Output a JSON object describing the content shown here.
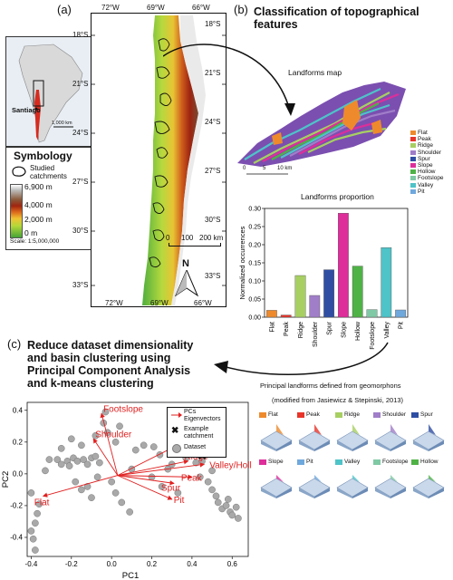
{
  "panel_a": {
    "label": "(a)",
    "top_lon_ticks": [
      "72°W",
      "69°W",
      "66°W"
    ],
    "bottom_lon_ticks": [
      "72°W",
      "69°W",
      "66°W"
    ],
    "lat_ticks": [
      "18°S",
      "21°S",
      "24°S",
      "27°S",
      "30°S",
      "33°S"
    ],
    "scalebar": {
      "labels": [
        "0",
        "100",
        "200 km"
      ]
    },
    "north": "N",
    "inset_city": "Santiago",
    "inset_scale": "1,000 km",
    "symbology": {
      "title": "Symbology",
      "catchments_label": "Studied catchments",
      "elevation_labels": [
        "6,900 m",
        "4,000 m",
        "2,000 m",
        "0 m"
      ],
      "scale_text": "Scale: 1:5,000,000"
    }
  },
  "panel_b": {
    "label": "(b)",
    "title_line1": "Classification of topographical",
    "title_line2": "features",
    "map_title": "Landforms map",
    "map_scale_labels": [
      "0",
      "5",
      "10 km"
    ],
    "legend": [
      {
        "name": "Flat",
        "color": "#ee8a2c"
      },
      {
        "name": "Peak",
        "color": "#e8352a"
      },
      {
        "name": "Ridge",
        "color": "#a7cf62"
      },
      {
        "name": "Shoulder",
        "color": "#a07ec8"
      },
      {
        "name": "Spur",
        "color": "#2f4ea3"
      },
      {
        "name": "Slope",
        "color": "#dd2e9a"
      },
      {
        "name": "Hollow",
        "color": "#4fb246"
      },
      {
        "name": "Footslope",
        "color": "#7fc9a5"
      },
      {
        "name": "Valley",
        "color": "#4ec3c8"
      },
      {
        "name": "Pit",
        "color": "#6fa8dc"
      }
    ],
    "prop_title": "Landforms proportion",
    "principal_title": "Principal landforms defined from geomorphons",
    "principal_source": "(modified from Jasiewicz & Stepinski, 2013)",
    "thumbnails_row1": [
      "Flat",
      "Peak",
      "Ridge",
      "Shoulder",
      "Spur"
    ],
    "thumbnails_row2": [
      "Slope",
      "Pit",
      "Valley",
      "Footslope",
      "Hollow"
    ]
  },
  "panel_c": {
    "label": "(c)",
    "title_lines": [
      "Reduce dataset dimensionality",
      "and basin clustering using",
      "Principal Component Analysis",
      "and k-means clustering"
    ],
    "legend": {
      "pcs": "PCs",
      "eigenvectors": "Eigenvectors",
      "example1": "Example",
      "example2": "catchment",
      "dataset": "Dataset"
    },
    "vector_labels": [
      "Footslope",
      "Shoulder",
      "Slope",
      "Ridge",
      "Valley/Hollow",
      "Peak",
      "Spur",
      "Pit",
      "Flat"
    ]
  },
  "chart_data": [
    {
      "type": "bar",
      "title": "Landforms proportion",
      "ylabel": "Normalized occurrences",
      "ylim": [
        0,
        0.3
      ],
      "yticks": [
        "0.00",
        "0.05",
        "0.10",
        "0.15",
        "0.20",
        "0.25",
        "0.30"
      ],
      "categories": [
        "Flat",
        "Peak",
        "Ridge",
        "Shoulder",
        "Spur",
        "Slope",
        "Hollow",
        "Footslope",
        "Valley",
        "Pit"
      ],
      "values": [
        0.019,
        0.006,
        0.115,
        0.06,
        0.131,
        0.287,
        0.141,
        0.021,
        0.192,
        0.02
      ],
      "colors": [
        "#ee8a2c",
        "#e8352a",
        "#a7cf62",
        "#a07ec8",
        "#2f4ea3",
        "#dd2e9a",
        "#4fb246",
        "#7fc9a5",
        "#4ec3c8",
        "#6fa8dc"
      ]
    },
    {
      "type": "scatter",
      "xlabel": "PC1",
      "ylabel": "PC2",
      "xlim": [
        -0.42,
        0.68
      ],
      "ylim": [
        -0.52,
        0.45
      ],
      "xticks": [
        "-0.4",
        "-0.2",
        "0.0",
        "0.2",
        "0.4",
        "0.6"
      ],
      "yticks": [
        "-0.4",
        "-0.2",
        "0.0",
        "0.2",
        "0.4"
      ],
      "points": [
        [
          -0.38,
          -0.48
        ],
        [
          -0.39,
          -0.41
        ],
        [
          -0.4,
          -0.36
        ],
        [
          -0.38,
          -0.31
        ],
        [
          -0.37,
          -0.25
        ],
        [
          -0.36,
          -0.19
        ],
        [
          -0.4,
          -0.12
        ],
        [
          -0.33,
          0.02
        ],
        [
          -0.31,
          0.09
        ],
        [
          -0.27,
          0.09
        ],
        [
          -0.25,
          0.06
        ],
        [
          -0.22,
          0.08
        ],
        [
          -0.21,
          0.05
        ],
        [
          -0.19,
          0.1
        ],
        [
          -0.17,
          0.08
        ],
        [
          -0.14,
          0.09
        ],
        [
          -0.12,
          0.06
        ],
        [
          -0.1,
          0.1
        ],
        [
          -0.08,
          0.11
        ],
        [
          -0.06,
          0.07
        ],
        [
          -0.25,
          0.16
        ],
        [
          -0.2,
          0.22
        ],
        [
          -0.15,
          0.18
        ],
        [
          -0.08,
          0.24
        ],
        [
          -0.04,
          0.32
        ],
        [
          -0.02,
          0.26
        ],
        [
          0.02,
          0.2
        ],
        [
          0.04,
          0.3
        ],
        [
          -0.18,
          -0.05
        ],
        [
          -0.15,
          -0.1
        ],
        [
          -0.12,
          -0.08
        ],
        [
          -0.1,
          -0.15
        ],
        [
          -0.07,
          -0.02
        ],
        [
          0.0,
          -0.05
        ],
        [
          0.02,
          -0.12
        ],
        [
          0.05,
          -0.18
        ],
        [
          0.09,
          -0.24
        ],
        [
          0.12,
          0.15
        ],
        [
          0.16,
          0.18
        ],
        [
          0.21,
          0.17
        ],
        [
          0.24,
          0.12
        ],
        [
          0.2,
          -0.02
        ],
        [
          0.25,
          -0.08
        ],
        [
          0.28,
          0.03
        ],
        [
          0.3,
          0.06
        ],
        [
          0.33,
          -0.12
        ],
        [
          0.37,
          0.1
        ],
        [
          0.42,
          0.07
        ],
        [
          0.45,
          0.08
        ],
        [
          0.48,
          -0.05
        ],
        [
          0.5,
          -0.1
        ],
        [
          0.52,
          -0.14
        ],
        [
          0.53,
          -0.18
        ],
        [
          0.55,
          -0.22
        ],
        [
          0.57,
          -0.2
        ],
        [
          0.59,
          -0.24
        ],
        [
          0.6,
          -0.26
        ],
        [
          0.62,
          -0.21
        ],
        [
          0.58,
          -0.16
        ],
        [
          0.63,
          -0.28
        ],
        [
          0.44,
          -0.02
        ],
        [
          0.5,
          0.02
        ],
        [
          -0.03,
          0.39
        ],
        [
          0.1,
          0.03
        ]
      ],
      "example_catchment": [
        0.45,
        0.12
      ],
      "eigenvectors": [
        {
          "name": "Footslope",
          "x": -0.05,
          "y": 0.38
        },
        {
          "name": "Shoulder",
          "x": -0.09,
          "y": 0.22
        },
        {
          "name": "Slope",
          "x": 0.39,
          "y": 0.22
        },
        {
          "name": "Ridge",
          "x": 0.38,
          "y": 0.08
        },
        {
          "name": "Valley/Hollow",
          "x": 0.46,
          "y": 0.06
        },
        {
          "name": "Peak",
          "x": 0.4,
          "y": -0.02
        },
        {
          "name": "Spur",
          "x": 0.31,
          "y": -0.06
        },
        {
          "name": "Pit",
          "x": 0.3,
          "y": -0.16
        },
        {
          "name": "Flat",
          "x": -0.34,
          "y": -0.14
        }
      ]
    }
  ]
}
